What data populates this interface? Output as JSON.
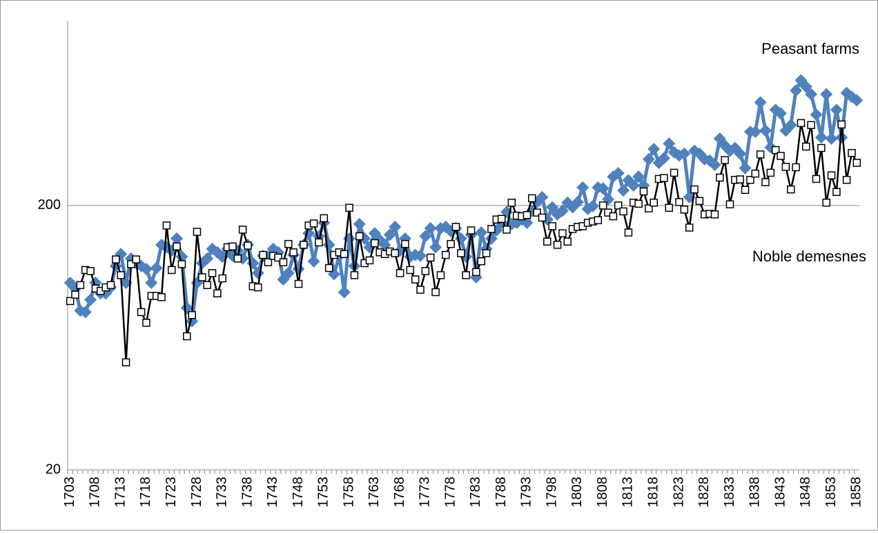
{
  "chart_data": {
    "type": "line",
    "categories": [
      "1703",
      null,
      null,
      null,
      null,
      "1708",
      null,
      null,
      null,
      null,
      "1713",
      null,
      null,
      null,
      null,
      "1718",
      null,
      null,
      null,
      null,
      "1723",
      null,
      null,
      null,
      null,
      "1728",
      null,
      null,
      null,
      null,
      "1733",
      null,
      null,
      null,
      null,
      "1738",
      null,
      null,
      null,
      null,
      "1743",
      null,
      null,
      null,
      null,
      "1748",
      null,
      null,
      null,
      null,
      "1753",
      null,
      null,
      null,
      null,
      "1758",
      null,
      null,
      null,
      null,
      "1763",
      null,
      null,
      null,
      null,
      "1768",
      null,
      null,
      null,
      null,
      "1773",
      null,
      null,
      null,
      null,
      "1778",
      null,
      null,
      null,
      null,
      "1783",
      null,
      null,
      null,
      null,
      "1788",
      null,
      null,
      null,
      null,
      "1793",
      null,
      null,
      null,
      null,
      "1798",
      null,
      null,
      null,
      null,
      "1803",
      null,
      null,
      null,
      null,
      "1808",
      null,
      null,
      null,
      null,
      "1813",
      null,
      null,
      null,
      null,
      "1818",
      null,
      null,
      null,
      null,
      "1823",
      null,
      null,
      null,
      null,
      "1828",
      null,
      null,
      null,
      null,
      "1833",
      null,
      null,
      null,
      null,
      "1838",
      null,
      null,
      null,
      null,
      "1843",
      null,
      null,
      null,
      null,
      "1848",
      null,
      null,
      null,
      null,
      "1853",
      null,
      null,
      null,
      null,
      "1858"
    ],
    "series": [
      {
        "name": "Peasant farms",
        "color": "#4f81bd",
        "marker": "diamond",
        "values": [
          102,
          97,
          80,
          79,
          88,
          102,
          93,
          93,
          98,
          118,
          131,
          102,
          126,
          121,
          118,
          115,
          102,
          116,
          142,
          139,
          135,
          150,
          128,
          82,
          73,
          102,
          121,
          126,
          137,
          133,
          128,
          137,
          129,
          135,
          126,
          142,
          121,
          111,
          129,
          128,
          137,
          133,
          105,
          111,
          130,
          115,
          142,
          157,
          123,
          153,
          172,
          142,
          110,
          129,
          94,
          150,
          118,
          170,
          150,
          139,
          157,
          148,
          142,
          155,
          166,
          135,
          150,
          128,
          130,
          129,
          153,
          164,
          139,
          164,
          166,
          160,
          164,
          150,
          128,
          155,
          107,
          158,
          137,
          150,
          161,
          172,
          189,
          170,
          172,
          177,
          172,
          191,
          206,
          215,
          177,
          197,
          185,
          191,
          205,
          197,
          206,
          234,
          194,
          199,
          234,
          232,
          211,
          257,
          265,
          228,
          249,
          238,
          257,
          238,
          299,
          327,
          290,
          302,
          343,
          318,
          309,
          314,
          215,
          322,
          314,
          299,
          296,
          285,
          358,
          337,
          322,
          330,
          314,
          277,
          380,
          380,
          491,
          384,
          332,
          460,
          446,
          384,
          403,
          544,
          595,
          563,
          527,
          441,
          362,
          527,
          358,
          460,
          362,
          533,
          515,
          500
        ]
      },
      {
        "name": "Noble demesnes",
        "color": "#000000",
        "marker": "square",
        "values": [
          87,
          92,
          100,
          114,
          113,
          97,
          95,
          98,
          100,
          125,
          109,
          51,
          120,
          125,
          79,
          72,
          91,
          91,
          90,
          168,
          114,
          140,
          120,
          64,
          77,
          159,
          107,
          100,
          111,
          93,
          106,
          139,
          140,
          126,
          162,
          141,
          99,
          98,
          130,
          122,
          129,
          127,
          122,
          143,
          133,
          101,
          142,
          168,
          171,
          145,
          179,
          116,
          130,
          133,
          131,
          196,
          109,
          153,
          121,
          124,
          144,
          133,
          131,
          134,
          132,
          111,
          143,
          114,
          105,
          96,
          113,
          127,
          94,
          109,
          130,
          143,
          166,
          132,
          109,
          161,
          112,
          123,
          132,
          163,
          177,
          178,
          162,
          205,
          183,
          182,
          184,
          213,
          188,
          180,
          146,
          167,
          142,
          157,
          146,
          163,
          166,
          167,
          172,
          174,
          176,
          200,
          188,
          182,
          200,
          190,
          158,
          205,
          203,
          226,
          195,
          205,
          252,
          254,
          196,
          266,
          206,
          193,
          165,
          230,
          208,
          185,
          186,
          185,
          255,
          297,
          202,
          250,
          251,
          229,
          250,
          264,
          312,
          245,
          266,
          324,
          308,
          280,
          230,
          279,
          410,
          334,
          403,
          252,
          330,
          205,
          260,
          225,
          405,
          250,
          316,
          290
        ]
      }
    ],
    "ylim": [
      20,
      1000
    ],
    "yticks": [
      20,
      200
    ],
    "log_y": true,
    "grid": true
  }
}
